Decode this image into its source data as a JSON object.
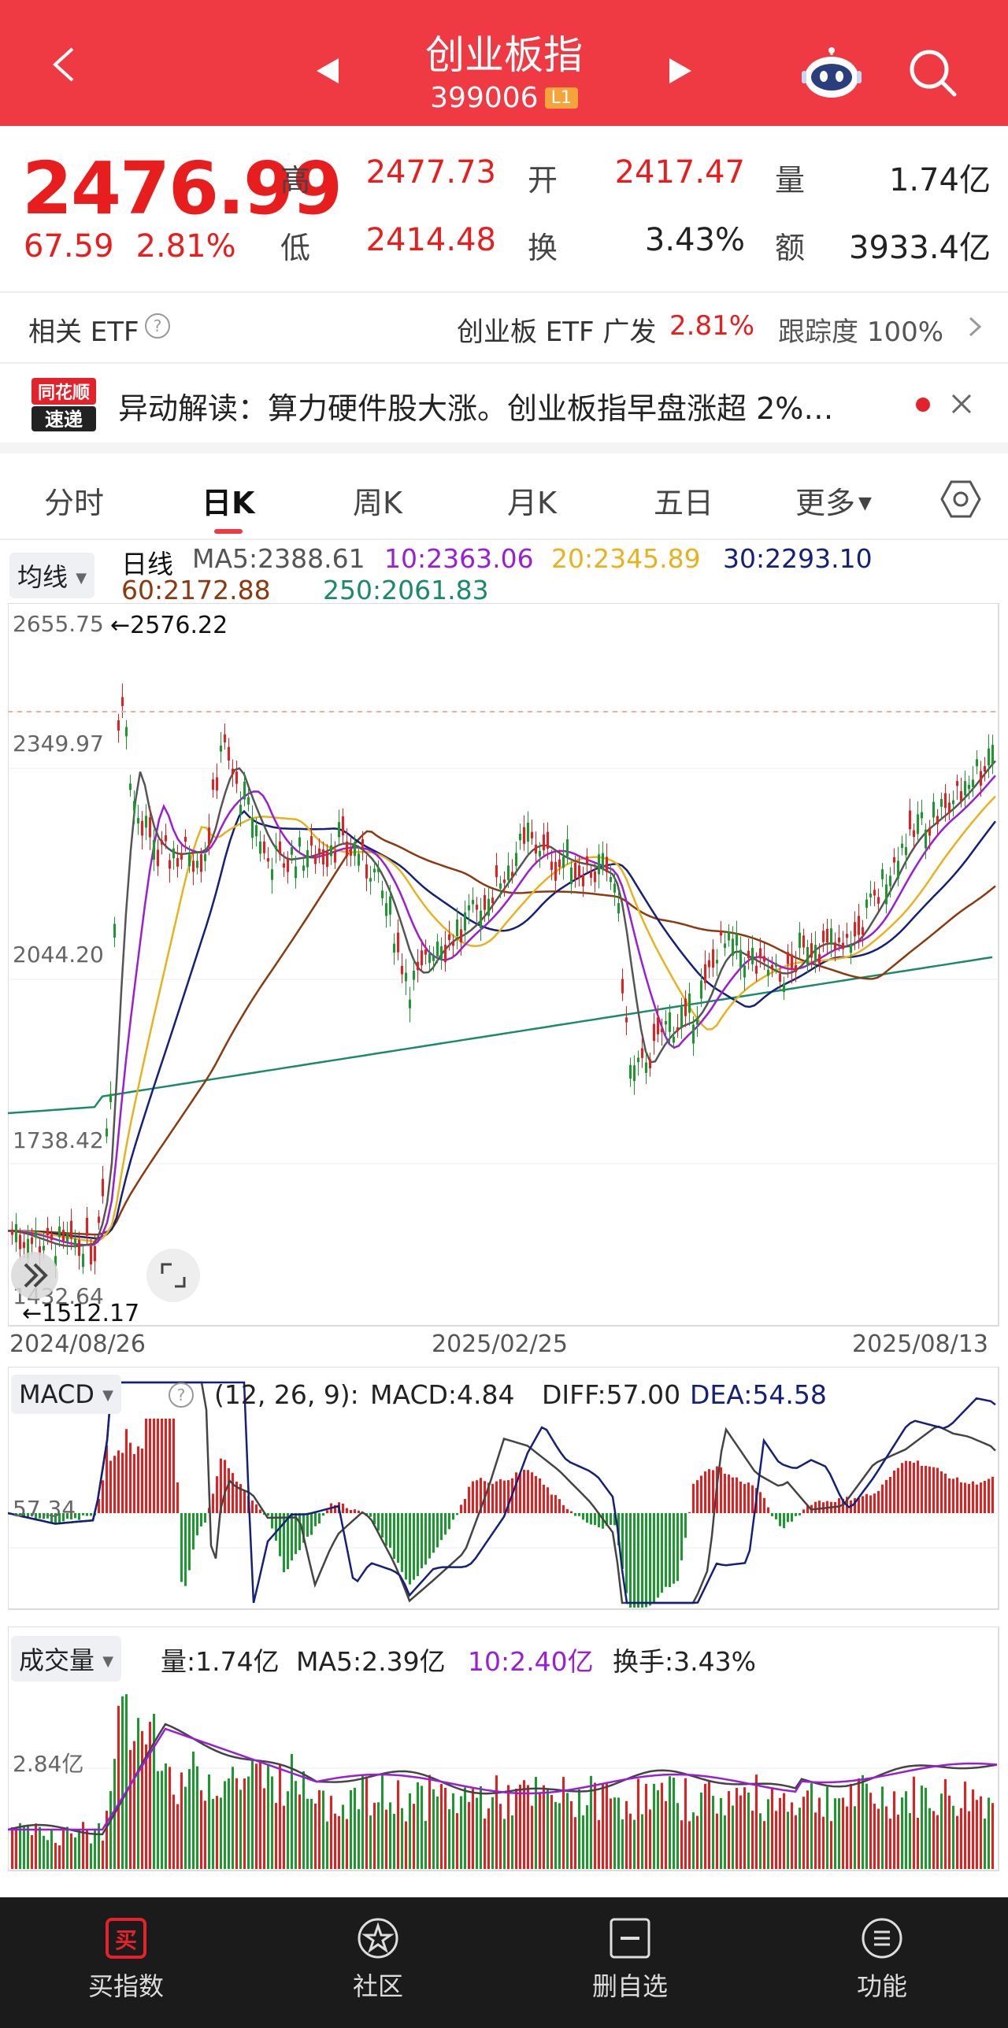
{
  "header": {
    "title": "创业板指",
    "code": "399006",
    "level": "L1"
  },
  "quote": {
    "price": "2476.99",
    "change": "67.59",
    "change_pct": "2.81%",
    "high_label": "高",
    "high": "2477.73",
    "open_label": "开",
    "open": "2417.47",
    "vol_label": "量",
    "vol": "1.74亿",
    "low_label": "低",
    "low": "2414.48",
    "turn_label": "换",
    "turn": "3.43%",
    "amount_label": "额",
    "amount": "3933.4亿"
  },
  "etf": {
    "label": "相关 ETF",
    "name": "创业板 ETF 广发",
    "pct": "2.81%",
    "track_label": "跟踪度",
    "track": "100%"
  },
  "news": {
    "logo_line1": "同花顺",
    "logo_line2": "速递",
    "text": "异动解读：算力硬件股大涨。创业板指早盘涨超 2%…"
  },
  "tabs": [
    {
      "label": "分时"
    },
    {
      "label": "日K"
    },
    {
      "label": "周K"
    },
    {
      "label": "月K"
    },
    {
      "label": "五日"
    },
    {
      "label": "更多"
    }
  ],
  "ma": {
    "selector": "均线",
    "period": "日线",
    "ma5": "MA5:2388.61",
    "ma10": "10:2363.06",
    "ma20": "20:2345.89",
    "ma30": "30:2293.10",
    "ma60": "60:2172.88",
    "ma250": "250:2061.83"
  },
  "kline": {
    "y_ticks": [
      "2655.75",
      "2349.97",
      "2044.20",
      "1738.42",
      "1432.64"
    ],
    "max_marker": "←2576.22",
    "min_marker": "←1512.17",
    "x_ticks": [
      "2024/08/26",
      "2025/02/25",
      "2025/08/13"
    ]
  },
  "macd": {
    "selector": "MACD",
    "params": "(12, 26, 9):",
    "macd": "MACD:4.84",
    "diff": "DIFF:57.00",
    "dea": "DEA:54.58",
    "y_tick": "57.34"
  },
  "volume": {
    "selector": "成交量",
    "vol": "量:1.74亿",
    "ma5": "MA5:2.39亿",
    "ma10": "10:2.40亿",
    "turn": "换手:3.43%",
    "y_tick": "2.84亿"
  },
  "nav": [
    {
      "label": "买指数",
      "icon": "buy-icon"
    },
    {
      "label": "社区",
      "icon": "community-icon"
    },
    {
      "label": "删自选",
      "icon": "remove-watchlist-icon"
    },
    {
      "label": "功能",
      "icon": "menu-icon"
    }
  ],
  "colors": {
    "header": "#ef3a43",
    "up": "#e81d1d",
    "down": "#1a9a2c",
    "ma5": "#555555",
    "ma10": "#9a1ed6",
    "ma20": "#e8b21d",
    "ma30": "#14207a",
    "ma60": "#8b3a0f",
    "ma250": "#1a8a6a"
  }
}
